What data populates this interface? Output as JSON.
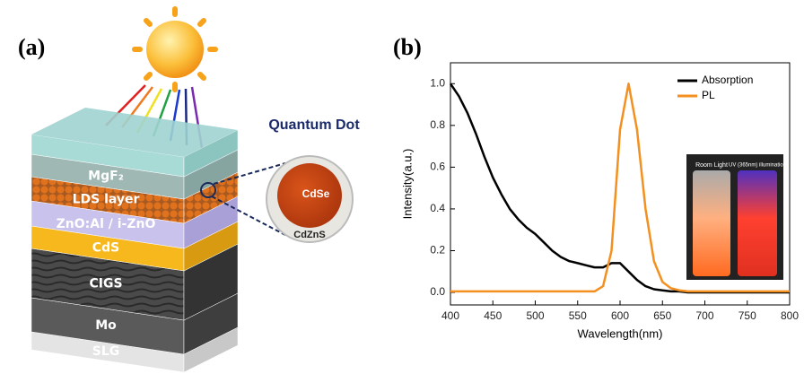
{
  "diagram": {
    "panel_label": "(a)",
    "layers": [
      "MgF₂",
      "LDS layer",
      "ZnO:Al / i-ZnO",
      "CdS",
      "CIGS",
      "Mo",
      "SLG"
    ],
    "quantum_dot": {
      "title": "Quantum Dot",
      "core": "CdSe",
      "shell": "CdZnS"
    }
  },
  "chart_data": {
    "type": "line",
    "panel_label": "(b)",
    "x_label": "Wavelength(nm)",
    "y_label": "Intensity(a.u.)",
    "x": [
      400,
      410,
      420,
      430,
      440,
      450,
      460,
      470,
      480,
      490,
      500,
      510,
      520,
      530,
      540,
      550,
      560,
      570,
      580,
      590,
      600,
      610,
      620,
      630,
      640,
      650,
      660,
      670,
      680,
      690,
      700,
      710,
      720,
      730,
      740,
      750,
      760,
      770,
      780,
      790,
      800
    ],
    "series": [
      {
        "name": "Absorption",
        "color": "#000000",
        "values": [
          1.0,
          0.94,
          0.86,
          0.76,
          0.65,
          0.55,
          0.47,
          0.4,
          0.35,
          0.31,
          0.28,
          0.24,
          0.2,
          0.17,
          0.15,
          0.14,
          0.13,
          0.12,
          0.12,
          0.14,
          0.14,
          0.1,
          0.06,
          0.03,
          0.015,
          0.01,
          0.005,
          0.005,
          0.0,
          0.0,
          0.0,
          0.0,
          0.0,
          0.0,
          0.0,
          0.0,
          0.0,
          0.0,
          0.0,
          0.0,
          0.0
        ]
      },
      {
        "name": "PL",
        "color": "#f39020",
        "values": [
          0.005,
          0.005,
          0.005,
          0.005,
          0.005,
          0.005,
          0.005,
          0.005,
          0.005,
          0.005,
          0.005,
          0.005,
          0.005,
          0.005,
          0.005,
          0.005,
          0.005,
          0.005,
          0.03,
          0.2,
          0.78,
          1.0,
          0.78,
          0.4,
          0.15,
          0.05,
          0.02,
          0.01,
          0.005,
          0.005,
          0.005,
          0.005,
          0.005,
          0.005,
          0.005,
          0.005,
          0.005,
          0.005,
          0.005,
          0.005,
          0.005
        ]
      }
    ],
    "xlim": [
      400,
      800
    ],
    "xticks": [
      400,
      450,
      500,
      550,
      600,
      650,
      700,
      750,
      800
    ],
    "ylim": [
      -0.06,
      1.1
    ],
    "yticks": [
      {
        "value": 0,
        "label": "0.0"
      },
      0.2,
      0.4,
      0.6,
      0.8,
      {
        "value": 1,
        "label": "1.0"
      }
    ],
    "legend": "upper right",
    "annotations": [
      "Room Light",
      "UV (365nm) illumination"
    ]
  }
}
